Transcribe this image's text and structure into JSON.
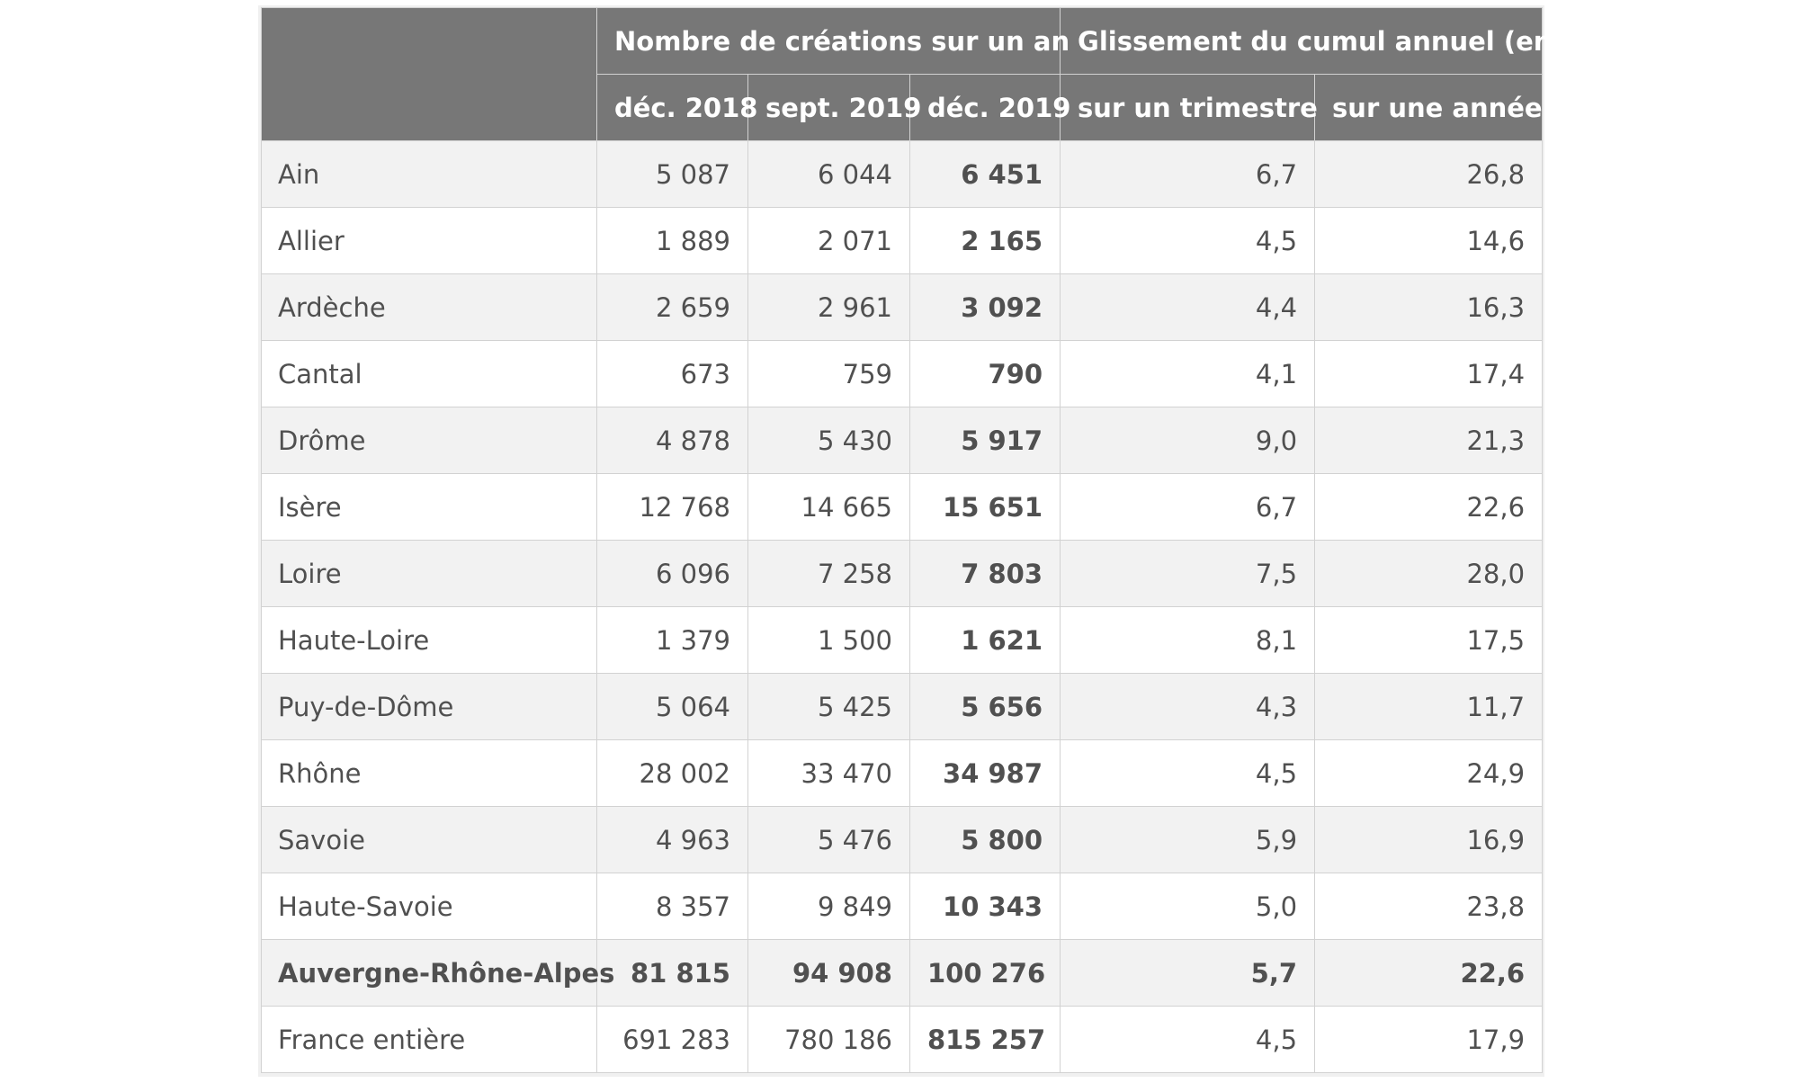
{
  "table": {
    "group_headers": [
      "Nombre de créations sur un an",
      "Glissement du cumul annuel (en %)"
    ],
    "sub_headers": [
      "déc. 2018",
      "sept. 2019",
      "déc. 2019",
      "sur un trimestre",
      "sur une année"
    ],
    "rows": [
      {
        "label": "Ain",
        "values": [
          "5 087",
          "6 044",
          "6 451",
          "6,7",
          "26,8"
        ]
      },
      {
        "label": "Allier",
        "values": [
          "1 889",
          "2 071",
          "2 165",
          "4,5",
          "14,6"
        ]
      },
      {
        "label": "Ardèche",
        "values": [
          "2 659",
          "2 961",
          "3 092",
          "4,4",
          "16,3"
        ]
      },
      {
        "label": "Cantal",
        "values": [
          "673",
          "759",
          "790",
          "4,1",
          "17,4"
        ]
      },
      {
        "label": "Drôme",
        "values": [
          "4 878",
          "5 430",
          "5 917",
          "9,0",
          "21,3"
        ]
      },
      {
        "label": "Isère",
        "values": [
          "12 768",
          "14 665",
          "15 651",
          "6,7",
          "22,6"
        ]
      },
      {
        "label": "Loire",
        "values": [
          "6 096",
          "7 258",
          "7 803",
          "7,5",
          "28,0"
        ]
      },
      {
        "label": "Haute-Loire",
        "values": [
          "1 379",
          "1 500",
          "1 621",
          "8,1",
          "17,5"
        ]
      },
      {
        "label": "Puy-de-Dôme",
        "values": [
          "5 064",
          "5 425",
          "5 656",
          "4,3",
          "11,7"
        ]
      },
      {
        "label": "Rhône",
        "values": [
          "28 002",
          "33 470",
          "34 987",
          "4,5",
          "24,9"
        ]
      },
      {
        "label": "Savoie",
        "values": [
          "4 963",
          "5 476",
          "5 800",
          "5,9",
          "16,9"
        ]
      },
      {
        "label": "Haute-Savoie",
        "values": [
          "8 357",
          "9 849",
          "10 343",
          "5,0",
          "23,8"
        ]
      },
      {
        "label": "Auvergne-Rhône-Alpes",
        "values": [
          "81 815",
          "94 908",
          "100 276",
          "5,7",
          "22,6"
        ],
        "total": true
      },
      {
        "label": "France entière",
        "values": [
          "691 283",
          "780 186",
          "815 257",
          "4,5",
          "17,9"
        ]
      }
    ]
  }
}
